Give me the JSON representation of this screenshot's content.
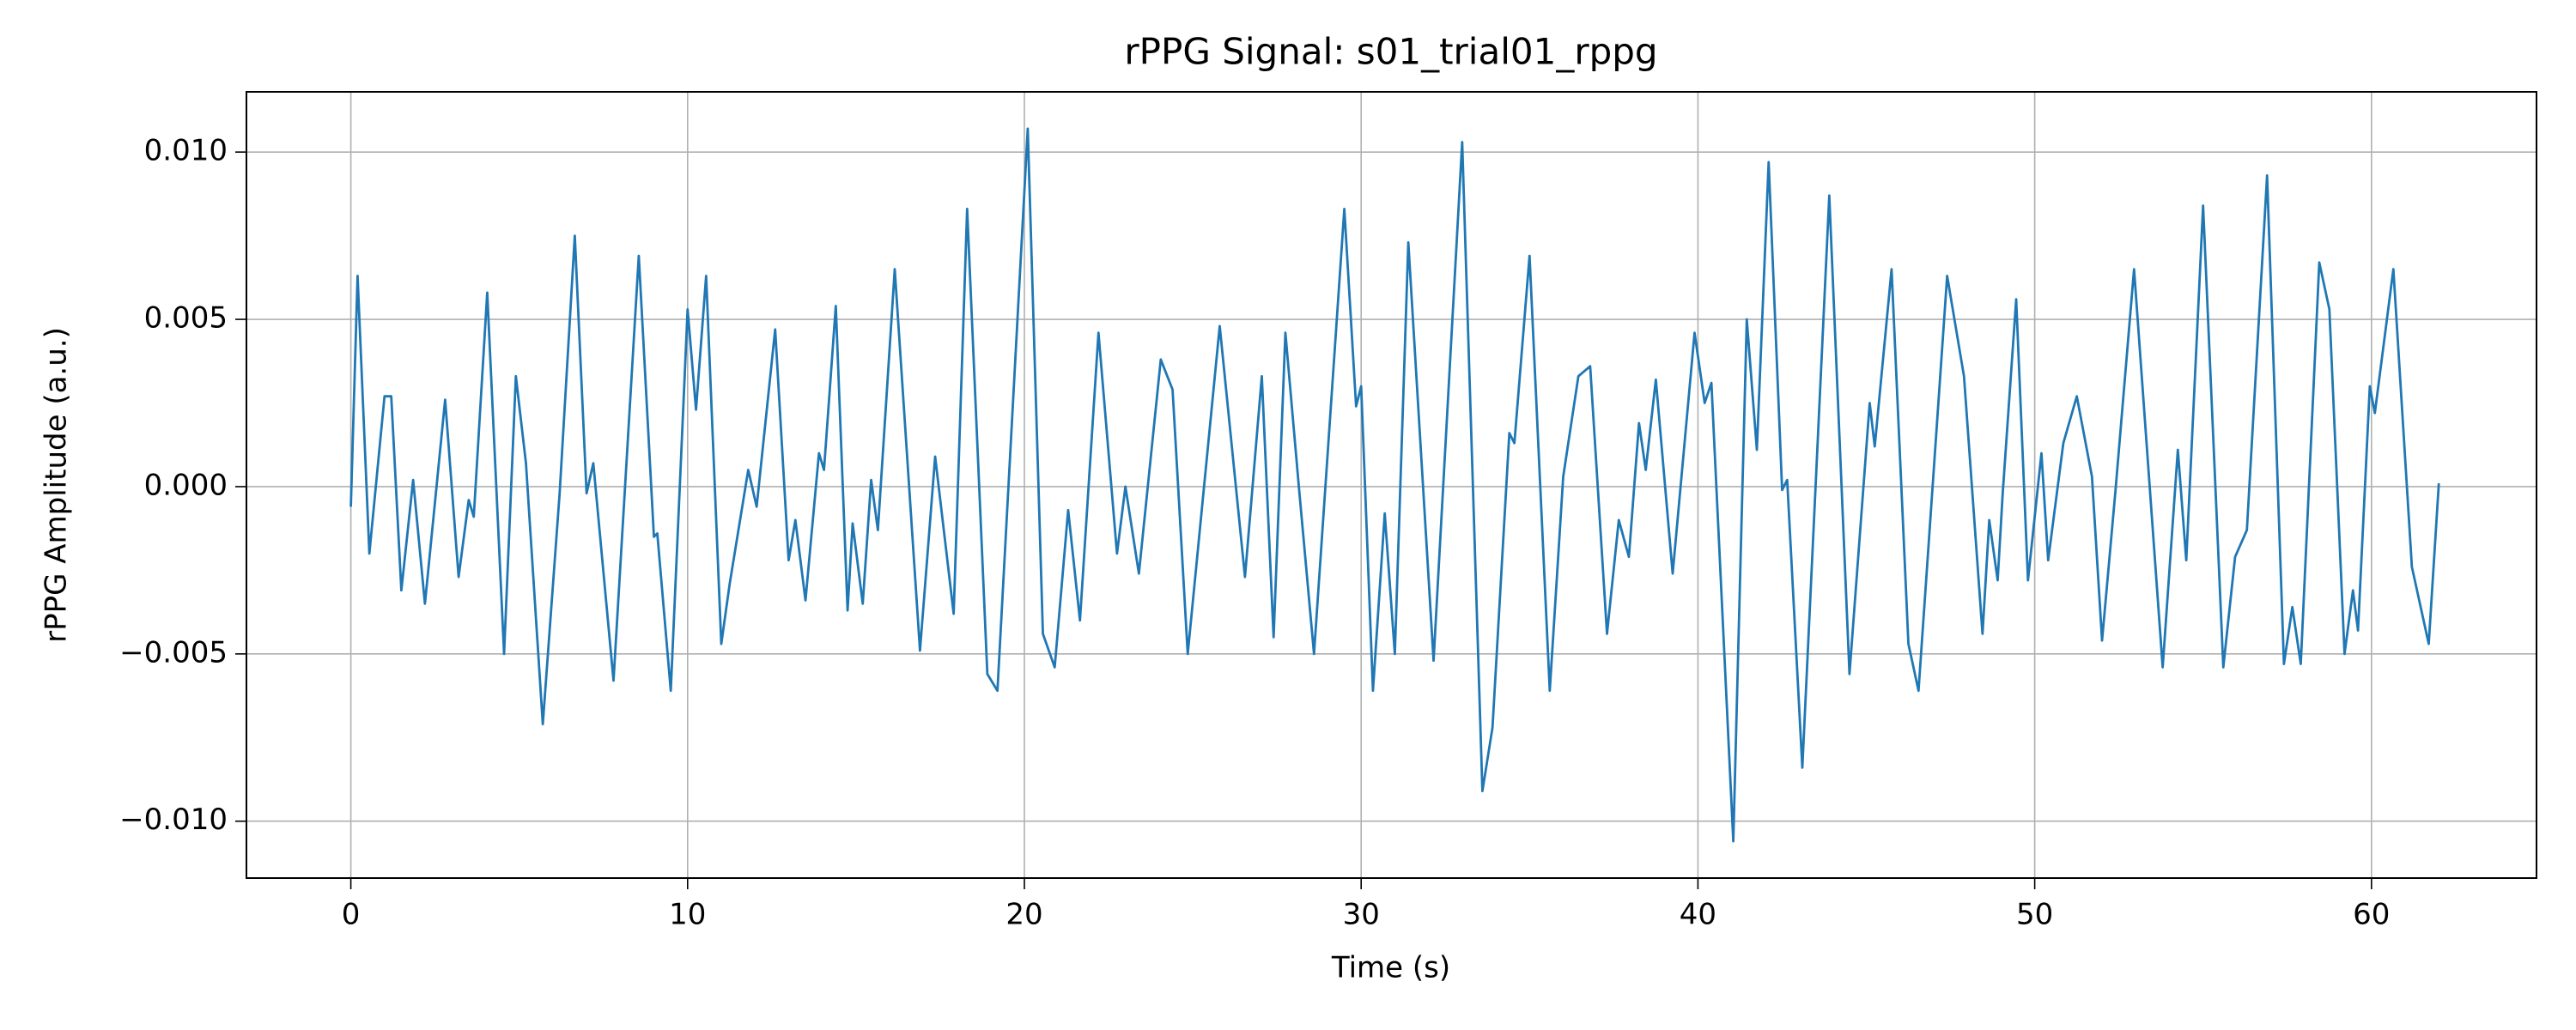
{
  "chart_data": {
    "type": "line",
    "title": "rPPG Signal: s01_trial01_rppg",
    "x_label": "Time (s)",
    "y_label": "rPPG Amplitude (a.u.)",
    "xlim": [
      -3.1,
      64.9
    ],
    "ylim": [
      -0.0117,
      0.0118
    ],
    "xticks": [
      0,
      10,
      20,
      30,
      40,
      50,
      60
    ],
    "yticks": [
      {
        "value": -0.01,
        "label": "−0.010"
      },
      {
        "value": -0.005,
        "label": "−0.005"
      },
      {
        "value": 0,
        "label": "0.000"
      },
      {
        "value": 0.005,
        "label": "0.005"
      },
      {
        "value": 0.01,
        "label": "0.010"
      }
    ],
    "grid": true,
    "x": [
      0,
      0.2,
      0.55,
      1.0,
      1.2,
      1.5,
      1.85,
      2.2,
      2.8,
      3.2,
      3.5,
      3.65,
      4.05,
      4.55,
      4.9,
      5.2,
      5.7,
      6.2,
      6.65,
      7.0,
      7.2,
      7.8,
      8.55,
      9.0,
      9.1,
      9.5,
      10.0,
      10.25,
      10.55,
      11.0,
      11.25,
      11.8,
      12.05,
      12.6,
      13.0,
      13.2,
      13.5,
      13.9,
      14.05,
      14.4,
      14.75,
      14.9,
      15.2,
      15.45,
      15.65,
      16.15,
      16.9,
      17.35,
      17.9,
      18.3,
      18.9,
      19.2,
      20.1,
      20.55,
      20.9,
      21.3,
      21.65,
      22.2,
      22.75,
      23.0,
      23.4,
      24.05,
      24.4,
      24.85,
      25.8,
      26.55,
      27.05,
      27.4,
      27.75,
      28.15,
      28.6,
      29.5,
      29.85,
      30.0,
      30.35,
      30.7,
      31.0,
      31.4,
      32.15,
      33.0,
      33.6,
      33.9,
      34.4,
      34.55,
      35.0,
      35.6,
      36.0,
      36.45,
      36.8,
      37.3,
      37.65,
      37.95,
      38.25,
      38.45,
      38.75,
      39.25,
      39.9,
      40.2,
      40.4,
      41.05,
      41.45,
      41.75,
      42.1,
      42.5,
      42.65,
      43.1,
      43.9,
      44.5,
      45.1,
      45.25,
      45.75,
      46.25,
      46.55,
      47.4,
      47.9,
      48.45,
      48.65,
      48.9,
      49.05,
      49.45,
      49.8,
      50.2,
      50.4,
      50.85,
      51.25,
      51.7,
      52.0,
      52.4,
      52.95,
      53.8,
      54.25,
      54.5,
      55.0,
      55.6,
      55.95,
      56.3,
      56.9,
      57.4,
      57.65,
      57.9,
      58.45,
      58.75,
      59.2,
      59.45,
      59.6,
      59.95,
      60.1,
      60.65,
      61.2,
      61.7,
      62.0
    ],
    "series": [
      {
        "name": "rPPG",
        "color": "#1f77b4",
        "values": [
          -0.0006,
          0.0063,
          -0.002,
          0.0027,
          0.0027,
          -0.0031,
          0.0002,
          -0.0035,
          0.0026,
          -0.0027,
          -0.0004,
          -0.0009,
          0.0058,
          -0.005,
          0.0033,
          0.0007,
          -0.0071,
          -0.0002,
          0.0075,
          -0.0002,
          0.0007,
          -0.0058,
          0.0069,
          -0.0015,
          -0.0014,
          -0.0061,
          0.0053,
          0.0023,
          0.0063,
          -0.0047,
          -0.0029,
          0.0005,
          -0.0006,
          0.0047,
          -0.0022,
          -0.001,
          -0.0034,
          0.001,
          0.0005,
          0.0054,
          -0.0037,
          -0.0011,
          -0.0035,
          0.0002,
          -0.0013,
          0.0065,
          -0.0049,
          0.0009,
          -0.0038,
          0.0083,
          -0.0056,
          -0.0061,
          0.0107,
          -0.0044,
          -0.0054,
          -0.0007,
          -0.004,
          0.0046,
          -0.002,
          0.0,
          -0.0026,
          0.0038,
          0.0029,
          -0.005,
          0.0048,
          -0.0027,
          0.0033,
          -0.0045,
          0.0046,
          0.0,
          -0.005,
          0.0083,
          0.0024,
          0.003,
          -0.0061,
          -0.0008,
          -0.005,
          0.0073,
          -0.0052,
          0.0103,
          -0.0091,
          -0.0072,
          0.0016,
          0.0013,
          0.0069,
          -0.0061,
          0.0003,
          0.0033,
          0.0036,
          -0.0044,
          -0.001,
          -0.0021,
          0.0019,
          0.0005,
          0.0032,
          -0.0026,
          0.0046,
          0.0025,
          0.0031,
          -0.0106,
          0.005,
          0.0011,
          0.0097,
          -0.0001,
          0.0002,
          -0.0084,
          0.0087,
          -0.0056,
          0.0025,
          0.0012,
          0.0065,
          -0.0047,
          -0.0061,
          0.0063,
          0.0033,
          -0.0044,
          -0.001,
          -0.0028,
          -0.0002,
          0.0056,
          -0.0028,
          0.001,
          -0.0022,
          0.0013,
          0.0027,
          0.0003,
          -0.0046,
          -0.0001,
          0.0065,
          -0.0054,
          0.0011,
          -0.0022,
          0.0084,
          -0.0054,
          -0.0021,
          -0.0013,
          0.0093,
          -0.0053,
          -0.0036,
          -0.0053,
          0.0067,
          0.0053,
          -0.005,
          -0.0031,
          -0.0043,
          0.003,
          0.0022,
          0.0065,
          -0.0024,
          -0.0047,
          0.0001
        ]
      }
    ]
  }
}
